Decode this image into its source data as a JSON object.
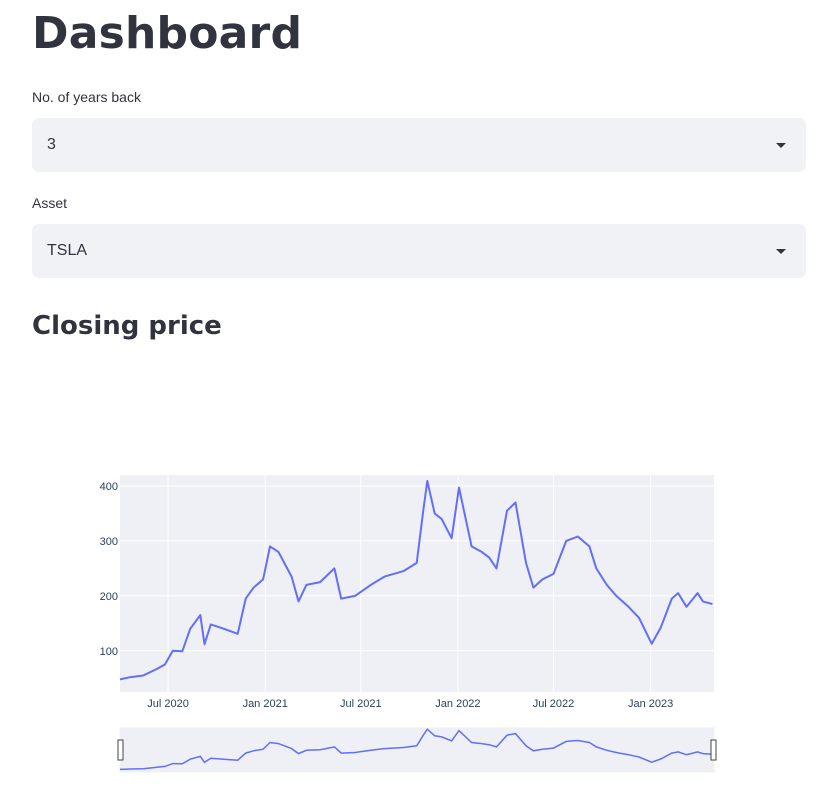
{
  "page": {
    "title": "Dashboard",
    "subheader": "Closing price"
  },
  "controls": {
    "years_back": {
      "label": "No. of years back",
      "value": "3",
      "icon": "chevron-down-icon"
    },
    "asset": {
      "label": "Asset",
      "value": "TSLA",
      "icon": "chevron-down-icon"
    }
  },
  "colors": {
    "line": "#636efa",
    "plot_bg": "#eef0f5",
    "grid": "#ffffff",
    "text": "#31333f",
    "select_bg": "#f0f2f6"
  },
  "chart_data": {
    "type": "line",
    "title": "",
    "xlabel": "",
    "ylabel": "",
    "x_start": "2020-04-01",
    "x_end": "2023-05-01",
    "ylim": [
      25,
      420
    ],
    "y_ticks": [
      100,
      200,
      300,
      400
    ],
    "x_ticks": [
      {
        "date": "2020-07-01",
        "label": "Jul 2020"
      },
      {
        "date": "2021-01-01",
        "label": "Jan 2021"
      },
      {
        "date": "2021-07-01",
        "label": "Jul 2021"
      },
      {
        "date": "2022-01-01",
        "label": "Jan 2022"
      },
      {
        "date": "2022-07-01",
        "label": "Jul 2022"
      },
      {
        "date": "2023-01-01",
        "label": "Jan 2023"
      }
    ],
    "grid": true,
    "range_slider": true,
    "series": [
      {
        "x": [
          "2020-04-01",
          "2020-04-20",
          "2020-05-15",
          "2020-06-10",
          "2020-06-25",
          "2020-07-10",
          "2020-07-28",
          "2020-08-12",
          "2020-08-31",
          "2020-09-08",
          "2020-09-20",
          "2020-10-15",
          "2020-11-10",
          "2020-11-25",
          "2020-12-10",
          "2020-12-28",
          "2021-01-10",
          "2021-01-26",
          "2021-02-20",
          "2021-03-05",
          "2021-03-20",
          "2021-04-15",
          "2021-05-12",
          "2021-05-25",
          "2021-06-20",
          "2021-07-20",
          "2021-08-15",
          "2021-09-20",
          "2021-10-15",
          "2021-10-28",
          "2021-11-04",
          "2021-11-18",
          "2021-12-01",
          "2021-12-20",
          "2022-01-03",
          "2022-01-27",
          "2022-02-15",
          "2022-03-01",
          "2022-03-15",
          "2022-04-04",
          "2022-04-20",
          "2022-05-10",
          "2022-05-24",
          "2022-06-10",
          "2022-07-01",
          "2022-07-25",
          "2022-08-16",
          "2022-09-07",
          "2022-09-20",
          "2022-10-10",
          "2022-10-28",
          "2022-11-20",
          "2022-12-10",
          "2023-01-03",
          "2023-01-20",
          "2023-02-10",
          "2023-02-22",
          "2023-03-10",
          "2023-03-31",
          "2023-04-10",
          "2023-04-28"
        ],
        "y": [
          48,
          52,
          55,
          67,
          75,
          100,
          99,
          140,
          165,
          112,
          148,
          140,
          131,
          195,
          215,
          230,
          290,
          280,
          235,
          190,
          220,
          225,
          250,
          195,
          200,
          220,
          235,
          245,
          260,
          360,
          409,
          350,
          340,
          305,
          397,
          290,
          280,
          270,
          250,
          355,
          370,
          260,
          215,
          230,
          240,
          300,
          308,
          290,
          250,
          220,
          200,
          180,
          160,
          113,
          142,
          195,
          205,
          180,
          205,
          190,
          185
        ]
      }
    ]
  }
}
